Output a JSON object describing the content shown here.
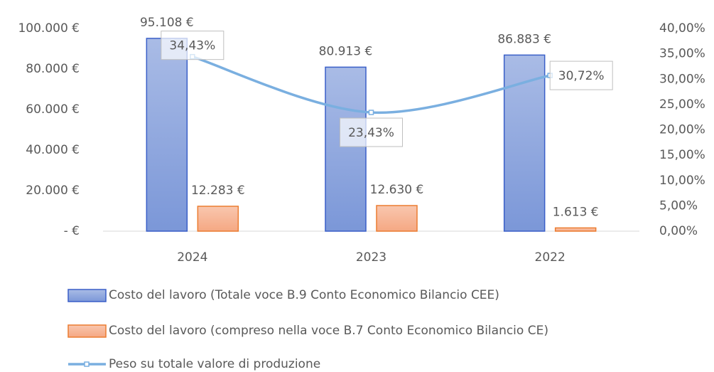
{
  "chart_data": {
    "type": "bar_line",
    "categories": [
      "2024",
      "2023",
      "2022"
    ],
    "series": [
      {
        "name": "Costo del lavoro (Totale voce B.9 Conto Economico Bilancio CEE)",
        "type": "bar",
        "color": "#7b97d8",
        "edgecolor": "#3a5fc8",
        "values": [
          95108,
          80913,
          86883
        ],
        "value_labels": [
          "95.108 €",
          "80.913 €",
          "86.883 €"
        ]
      },
      {
        "name": "Costo del lavoro (compreso nella voce B.7 Conto Economico Bilancio CE)",
        "type": "bar",
        "color": "#f5a883",
        "edgecolor": "#ec7c30",
        "values": [
          12283,
          12630,
          1613
        ],
        "value_labels": [
          "12.283 €",
          "12.630 €",
          "1.613 €"
        ]
      },
      {
        "name": "Peso su totale valore di produzione",
        "type": "line",
        "axis": "y2",
        "color": "#7aafe0",
        "values": [
          34.43,
          23.43,
          30.72
        ],
        "value_labels": [
          "34,43%",
          "23,43%",
          "30,72%"
        ]
      }
    ],
    "ylim": [
      0,
      100000
    ],
    "yticks": [
      {
        "value": 0,
        "label": "-   €"
      },
      {
        "value": 20000,
        "label": "20.000 €"
      },
      {
        "value": 40000,
        "label": "40.000 €"
      },
      {
        "value": 60000,
        "label": "60.000 €"
      },
      {
        "value": 80000,
        "label": "80.000 €"
      },
      {
        "value": 100000,
        "label": "100.000 €"
      }
    ],
    "y2lim": [
      0,
      40
    ],
    "y2ticks": [
      {
        "value": 0,
        "label": "0,00%"
      },
      {
        "value": 5,
        "label": "5,00%"
      },
      {
        "value": 10,
        "label": "10,00%"
      },
      {
        "value": 15,
        "label": "15,00%"
      },
      {
        "value": 20,
        "label": "20,00%"
      },
      {
        "value": 25,
        "label": "25,00%"
      },
      {
        "value": 30,
        "label": "30,00%"
      },
      {
        "value": 35,
        "label": "35,00%"
      },
      {
        "value": 40,
        "label": "40,00%"
      }
    ],
    "legend": "bottom"
  }
}
